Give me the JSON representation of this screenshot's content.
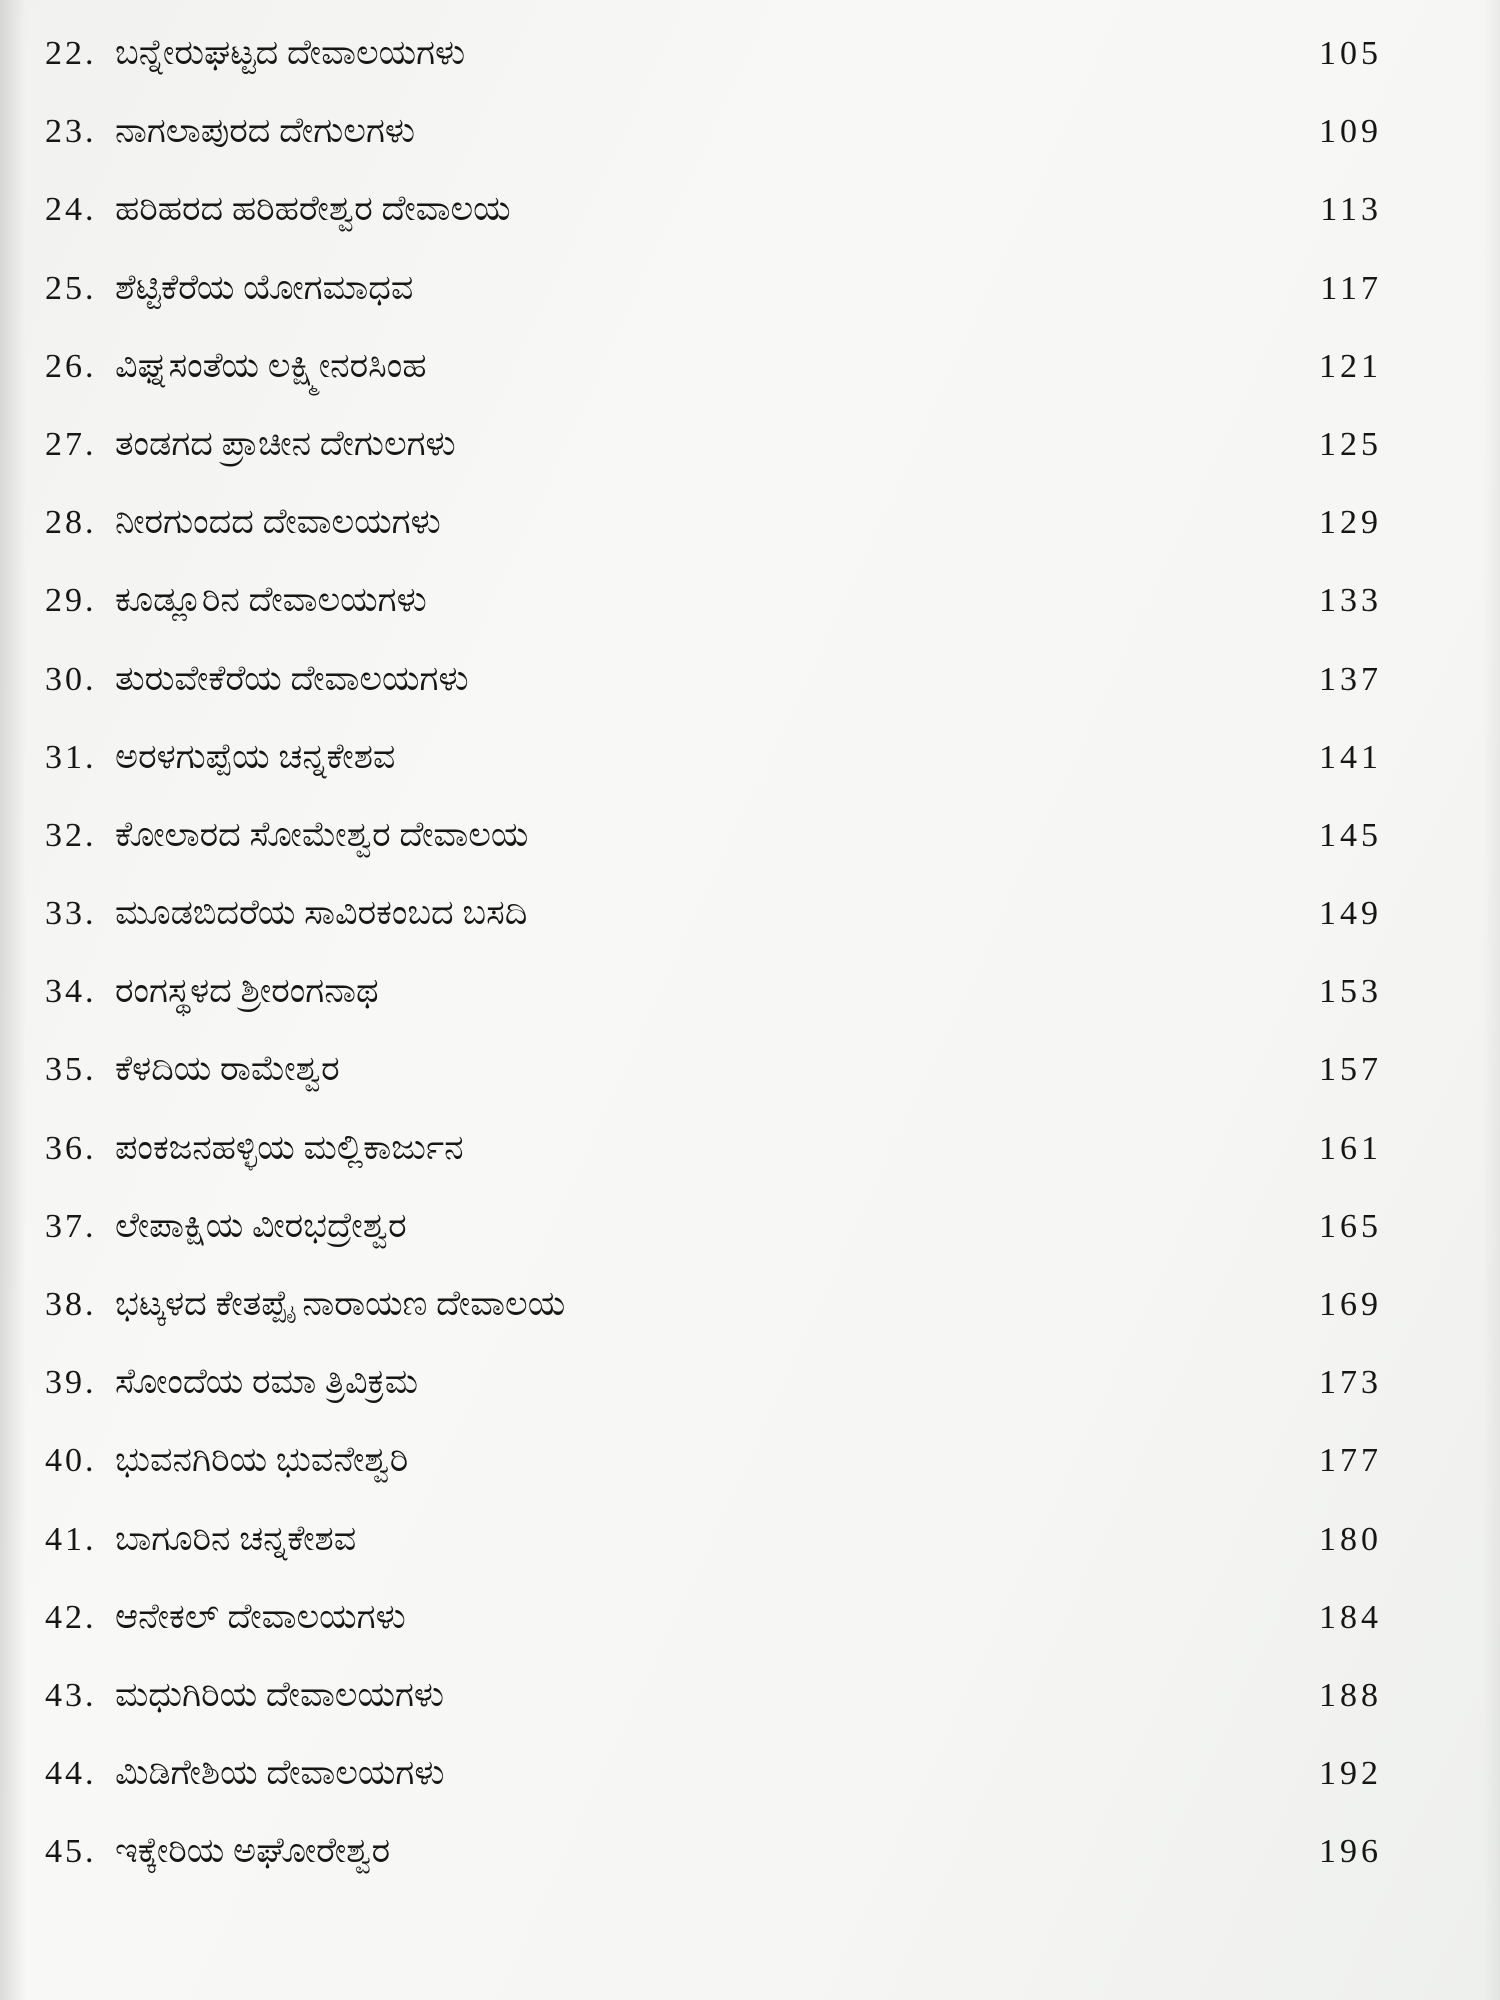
{
  "document": {
    "kind": "book-table-of-contents",
    "language": "Kannada",
    "text_color": "#161616",
    "paper_color": "#f6f6f4",
    "entries": [
      {
        "num": "22.",
        "title": "ಬನ್ನೇರುಘಟ್ಟದ ದೇವಾಲಯಗಳು",
        "page": "105"
      },
      {
        "num": "23.",
        "title": "ನಾಗಲಾಪುರದ ದೇಗುಲಗಳು",
        "page": "109"
      },
      {
        "num": "24.",
        "title": "ಹರಿಹರದ ಹರಿಹರೇಶ್ವರ ದೇವಾಲಯ",
        "page": "113"
      },
      {
        "num": "25.",
        "title": "ಶೆಟ್ಟಿಕೆರೆಯ ಯೋಗಮಾಧವ",
        "page": "117"
      },
      {
        "num": "26.",
        "title": "ವಿಘ್ನಸಂತೆಯ ಲಕ್ಷ್ಮೀನರಸಿಂಹ",
        "page": "121"
      },
      {
        "num": "27.",
        "title": "ತಂಡಗದ ಪ್ರಾಚೀನ ದೇಗುಲಗಳು",
        "page": "125"
      },
      {
        "num": "28.",
        "title": "ನೀರಗುಂದದ ದೇವಾಲಯಗಳು",
        "page": "129"
      },
      {
        "num": "29.",
        "title": "ಕೂಡ್ಲೂರಿನ ದೇವಾಲಯಗಳು",
        "page": "133"
      },
      {
        "num": "30.",
        "title": "ತುರುವೇಕೆರೆಯ ದೇವಾಲಯಗಳು",
        "page": "137"
      },
      {
        "num": "31.",
        "title": "ಅರಳಗುಪ್ಪೆಯ ಚನ್ನಕೇಶವ",
        "page": "141"
      },
      {
        "num": "32.",
        "title": "ಕೋಲಾರದ ಸೋಮೇಶ್ವರ ದೇವಾಲಯ",
        "page": "145"
      },
      {
        "num": "33.",
        "title": "ಮೂಡಬಿದರೆಯ ಸಾವಿರಕಂಬದ ಬಸದಿ",
        "page": "149"
      },
      {
        "num": "34.",
        "title": "ರಂಗಸ್ಥಳದ ಶ್ರೀರಂಗನಾಥ",
        "page": "153"
      },
      {
        "num": "35.",
        "title": "ಕೆಳದಿಯ ರಾಮೇಶ್ವರ",
        "page": "157"
      },
      {
        "num": "36.",
        "title": "ಪಂಕಜನಹಳ್ಳಿಯ ಮಲ್ಲಿಕಾರ್ಜುನ",
        "page": "161"
      },
      {
        "num": "37.",
        "title": "ಲೇಪಾಕ್ಷಿಯ ವೀರಭದ್ರೇಶ್ವರ",
        "page": "165"
      },
      {
        "num": "38.",
        "title": "ಭಟ್ಕಳದ ಕೇತಪ್ಪೈ ನಾರಾಯಣ ದೇವಾಲಯ",
        "page": "169"
      },
      {
        "num": "39.",
        "title": "ಸೋಂದೆಯ ರಮಾ ತ್ರಿವಿಕ್ರಮ",
        "page": "173"
      },
      {
        "num": "40.",
        "title": "ಭುವನಗಿರಿಯ ಭುವನೇಶ್ವರಿ",
        "page": "177"
      },
      {
        "num": "41.",
        "title": "ಬಾಗೂರಿನ ಚನ್ನಕೇಶವ",
        "page": "180"
      },
      {
        "num": "42.",
        "title": "ಆನೇಕಲ್ ದೇವಾಲಯಗಳು",
        "page": "184"
      },
      {
        "num": "43.",
        "title": "ಮಧುಗಿರಿಯ ದೇವಾಲಯಗಳು",
        "page": "188"
      },
      {
        "num": "44.",
        "title": "ಮಿಡಿಗೇಶಿಯ ದೇವಾಲಯಗಳು",
        "page": "192"
      },
      {
        "num": "45.",
        "title": "ಇಕ್ಕೇರಿಯ ಅಘೋರೇಶ್ವರ",
        "page": "196"
      }
    ]
  }
}
